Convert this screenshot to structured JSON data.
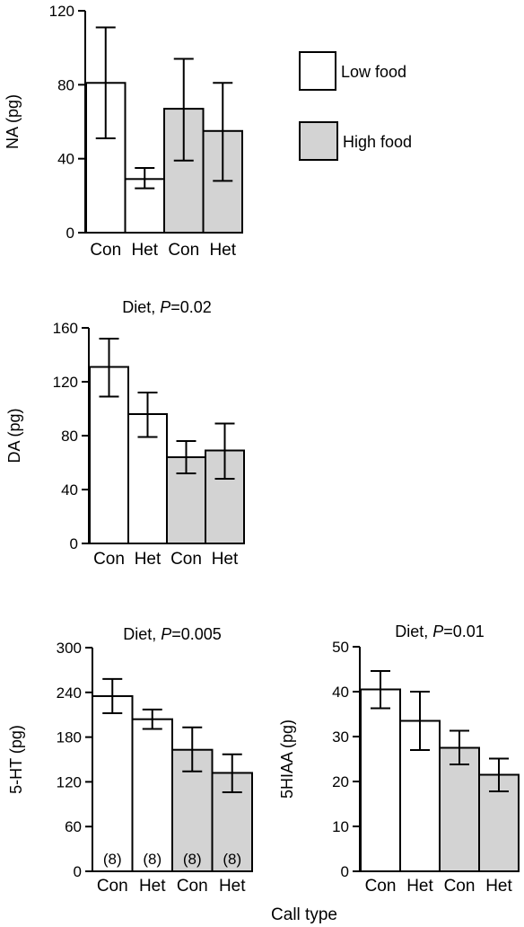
{
  "legend": {
    "items": [
      {
        "label": "Low food",
        "color": "#ffffff"
      },
      {
        "label": "High food",
        "color": "#d3d3d3"
      }
    ],
    "placement": "right of top panel"
  },
  "shared_xlabel": "Call type",
  "chart_data": [
    {
      "type": "bar",
      "categories": [
        "Con",
        "Het",
        "Con",
        "Het"
      ],
      "groups": [
        "Low food",
        "Low food",
        "High food",
        "High food"
      ],
      "values": [
        81,
        29,
        67,
        55
      ],
      "error": [
        [
          51,
          111
        ],
        [
          24,
          35
        ],
        [
          39,
          94
        ],
        [
          28,
          81
        ]
      ],
      "title": "",
      "ylabel": "NA (pg)",
      "ylim": [
        0,
        120
      ],
      "yticks": [
        0,
        40,
        80,
        120
      ],
      "sample_sizes": null
    },
    {
      "type": "bar",
      "categories": [
        "Con",
        "Het",
        "Con",
        "Het"
      ],
      "groups": [
        "Low food",
        "Low food",
        "High food",
        "High food"
      ],
      "values": [
        131,
        96,
        64,
        69
      ],
      "error": [
        [
          109,
          152
        ],
        [
          79,
          112
        ],
        [
          52,
          76
        ],
        [
          48,
          89
        ]
      ],
      "title_prefix": "Diet, ",
      "title_p": "P",
      "title_value": "=0.02",
      "ylabel": "DA (pg)",
      "ylim": [
        0,
        160
      ],
      "yticks": [
        0,
        40,
        80,
        120,
        160
      ],
      "sample_sizes": null
    },
    {
      "type": "bar",
      "categories": [
        "Con",
        "Het",
        "Con",
        "Het"
      ],
      "groups": [
        "Low food",
        "Low food",
        "High food",
        "High food"
      ],
      "values": [
        235,
        204,
        163,
        132
      ],
      "error": [
        [
          212,
          258
        ],
        [
          191,
          217
        ],
        [
          134,
          193
        ],
        [
          106,
          157
        ]
      ],
      "title_prefix": "Diet, ",
      "title_p": "P",
      "title_value": "=0.005",
      "ylabel": "5-HT (pg)",
      "ylim": [
        0,
        300
      ],
      "yticks": [
        0,
        60,
        120,
        180,
        240,
        300
      ],
      "sample_sizes": [
        "(8)",
        "(8)",
        "(8)",
        "(8)"
      ]
    },
    {
      "type": "bar",
      "categories": [
        "Con",
        "Het",
        "Con",
        "Het"
      ],
      "groups": [
        "Low food",
        "Low food",
        "High food",
        "High food"
      ],
      "values": [
        40.5,
        33.5,
        27.5,
        21.5
      ],
      "error": [
        [
          36.3,
          44.6
        ],
        [
          27,
          40
        ],
        [
          23.8,
          31.3
        ],
        [
          17.8,
          25.1
        ]
      ],
      "title_prefix": "Diet, ",
      "title_p": "P",
      "title_value": "=0.01",
      "ylabel": "5HIAA (pg)",
      "ylim": [
        0,
        50
      ],
      "yticks": [
        0,
        10,
        20,
        30,
        40,
        50
      ],
      "sample_sizes": null
    }
  ]
}
